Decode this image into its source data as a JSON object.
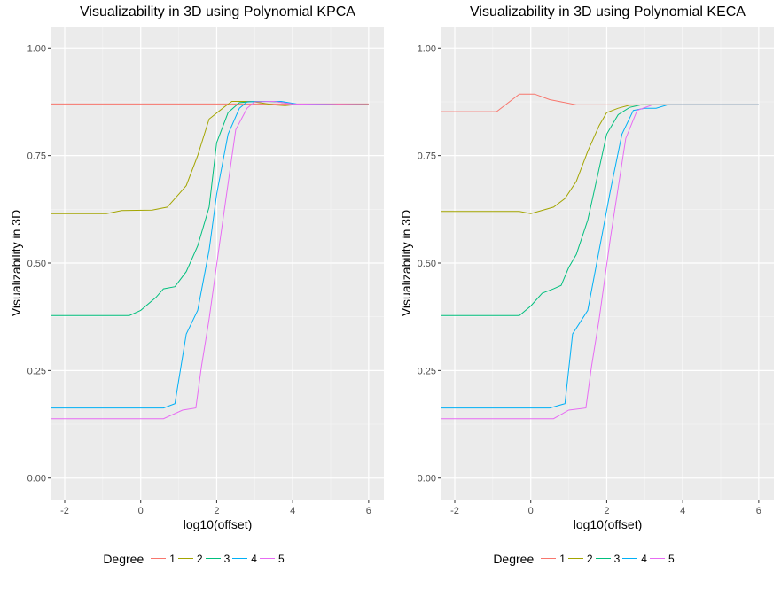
{
  "chart_data": [
    {
      "type": "line",
      "title": "Visualizability in 3D using Polynomial KPCA",
      "xlabel": "log10(offset)",
      "ylabel": "Visualizability in 3D",
      "xlim": [
        -2.35,
        6.4
      ],
      "ylim": [
        -0.05,
        1.05
      ],
      "x_ticks": [
        -2,
        0,
        2,
        4,
        6
      ],
      "y_ticks": [
        0.0,
        0.25,
        0.5,
        0.75,
        1.0
      ],
      "y_tick_labels": [
        "0.00",
        "0.25",
        "0.50",
        "0.75",
        "1.00"
      ],
      "grid": true,
      "legend": {
        "title": "Degree",
        "position": "bottom"
      },
      "series": [
        {
          "name": "1",
          "color": "#F8766D",
          "x": [
            -2.35,
            0,
            2,
            4,
            6
          ],
          "y": [
            0.87,
            0.87,
            0.87,
            0.87,
            0.87
          ]
        },
        {
          "name": "2",
          "color": "#A3A500",
          "x": [
            -2.35,
            -0.9,
            -0.5,
            0.3,
            0.7,
            1.0,
            1.2,
            1.5,
            1.8,
            2.2,
            2.4,
            2.9,
            3.2,
            3.5,
            3.8,
            4.0,
            6.0
          ],
          "y": [
            0.615,
            0.615,
            0.622,
            0.623,
            0.63,
            0.66,
            0.68,
            0.75,
            0.835,
            0.863,
            0.876,
            0.876,
            0.872,
            0.868,
            0.866,
            0.868,
            0.868
          ]
        },
        {
          "name": "3",
          "color": "#00BF7D",
          "x": [
            -2.35,
            -0.3,
            0,
            0.4,
            0.6,
            0.9,
            1.2,
            1.5,
            1.8,
            2.0,
            2.3,
            2.6,
            3.0,
            3.3,
            3.6,
            4.0,
            6.0
          ],
          "y": [
            0.378,
            0.378,
            0.39,
            0.42,
            0.44,
            0.445,
            0.48,
            0.54,
            0.63,
            0.78,
            0.85,
            0.873,
            0.876,
            0.876,
            0.875,
            0.87,
            0.868
          ]
        },
        {
          "name": "4",
          "color": "#00B0F6",
          "x": [
            -2.35,
            0.6,
            0.9,
            1.2,
            1.5,
            1.8,
            2.0,
            2.3,
            2.6,
            2.8,
            3.3,
            3.7,
            4.1,
            6.0
          ],
          "y": [
            0.163,
            0.163,
            0.173,
            0.335,
            0.39,
            0.53,
            0.66,
            0.8,
            0.86,
            0.875,
            0.876,
            0.876,
            0.87,
            0.868
          ]
        },
        {
          "name": "5",
          "color": "#E76BF3",
          "x": [
            -2.35,
            0.6,
            1.1,
            1.45,
            1.6,
            1.8,
            2.1,
            2.5,
            2.8,
            3.0,
            3.5,
            4.0,
            6.0
          ],
          "y": [
            0.138,
            0.138,
            0.158,
            0.163,
            0.26,
            0.37,
            0.56,
            0.81,
            0.86,
            0.875,
            0.876,
            0.87,
            0.868
          ]
        }
      ]
    },
    {
      "type": "line",
      "title": "Visualizability in 3D using Polynomial KECA",
      "xlabel": "log10(offset)",
      "ylabel": "Visualizability in 3D",
      "xlim": [
        -2.35,
        6.4
      ],
      "ylim": [
        -0.05,
        1.05
      ],
      "x_ticks": [
        -2,
        0,
        2,
        4,
        6
      ],
      "y_ticks": [
        0.0,
        0.25,
        0.5,
        0.75,
        1.0
      ],
      "y_tick_labels": [
        "0.00",
        "0.25",
        "0.50",
        "0.75",
        "1.00"
      ],
      "grid": true,
      "legend": {
        "title": "Degree",
        "position": "bottom"
      },
      "series": [
        {
          "name": "1",
          "color": "#F8766D",
          "x": [
            -2.35,
            -0.9,
            -0.3,
            0.1,
            0.5,
            0.8,
            1.2,
            2.0,
            3.0,
            4.0,
            6.0
          ],
          "y": [
            0.852,
            0.852,
            0.893,
            0.893,
            0.88,
            0.875,
            0.868,
            0.868,
            0.868,
            0.868,
            0.868
          ]
        },
        {
          "name": "2",
          "color": "#A3A500",
          "x": [
            -2.35,
            -0.3,
            0,
            0.6,
            0.9,
            1.2,
            1.5,
            1.8,
            2.0,
            2.3,
            2.6,
            3.0,
            3.4,
            6.0
          ],
          "y": [
            0.62,
            0.62,
            0.615,
            0.63,
            0.65,
            0.69,
            0.76,
            0.82,
            0.85,
            0.86,
            0.867,
            0.868,
            0.868,
            0.868
          ]
        },
        {
          "name": "3",
          "color": "#00BF7D",
          "x": [
            -2.35,
            -0.3,
            0,
            0.3,
            0.6,
            0.8,
            1.0,
            1.2,
            1.5,
            1.8,
            2.0,
            2.3,
            2.6,
            2.9,
            3.3,
            6.0
          ],
          "y": [
            0.378,
            0.378,
            0.4,
            0.43,
            0.44,
            0.448,
            0.49,
            0.52,
            0.6,
            0.72,
            0.8,
            0.845,
            0.862,
            0.868,
            0.868,
            0.868
          ]
        },
        {
          "name": "4",
          "color": "#00B0F6",
          "x": [
            -2.35,
            0.5,
            0.9,
            1.1,
            1.5,
            1.8,
            2.1,
            2.4,
            2.7,
            3.0,
            3.3,
            3.6,
            6.0
          ],
          "y": [
            0.163,
            0.163,
            0.173,
            0.335,
            0.39,
            0.53,
            0.67,
            0.8,
            0.855,
            0.86,
            0.86,
            0.868,
            0.868
          ]
        },
        {
          "name": "5",
          "color": "#E76BF3",
          "x": [
            -2.35,
            0.6,
            1.0,
            1.45,
            1.6,
            1.8,
            2.1,
            2.5,
            2.8,
            3.2,
            3.5,
            6.0
          ],
          "y": [
            0.138,
            0.138,
            0.158,
            0.163,
            0.26,
            0.37,
            0.56,
            0.79,
            0.855,
            0.868,
            0.868,
            0.868
          ]
        }
      ]
    }
  ]
}
